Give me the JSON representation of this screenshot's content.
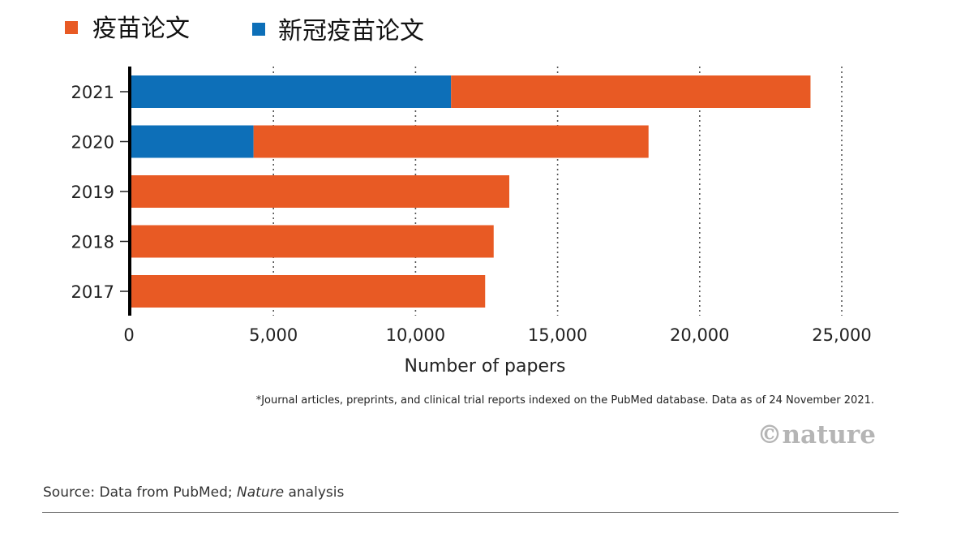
{
  "legend": [
    {
      "label": "疫苗论文",
      "color": "#e85a24"
    },
    {
      "label": "新冠疫苗论文",
      "color": "#0d6fb8"
    }
  ],
  "chart_data": {
    "type": "bar",
    "orientation": "horizontal",
    "stacked": true,
    "categories": [
      "2021",
      "2020",
      "2019",
      "2018",
      "2017"
    ],
    "series": [
      {
        "name": "新冠疫苗论文",
        "color": "#0d6fb8",
        "values": [
          11250,
          4300,
          0,
          0,
          0
        ]
      },
      {
        "name": "疫苗论文",
        "color": "#e85a24",
        "values": [
          12650,
          13900,
          13300,
          12750,
          12450
        ]
      }
    ],
    "xlim": [
      0,
      25000
    ],
    "xticks": [
      0,
      5000,
      10000,
      15000,
      20000,
      25000
    ],
    "xtick_labels": [
      "0",
      "5,000",
      "10,000",
      "15,000",
      "20,000",
      "25,000"
    ],
    "xlabel": "Number of papers",
    "grid": "vertical dotted",
    "legend_position": "top-left"
  },
  "footnote": "*Journal articles, preprints, and clinical trial reports indexed on the PubMed database. Data as of 24 November 2021.",
  "brand": "©nature",
  "source": {
    "prefix": "Source: Data from PubMed; ",
    "italic": "Nature",
    "suffix": " analysis"
  }
}
